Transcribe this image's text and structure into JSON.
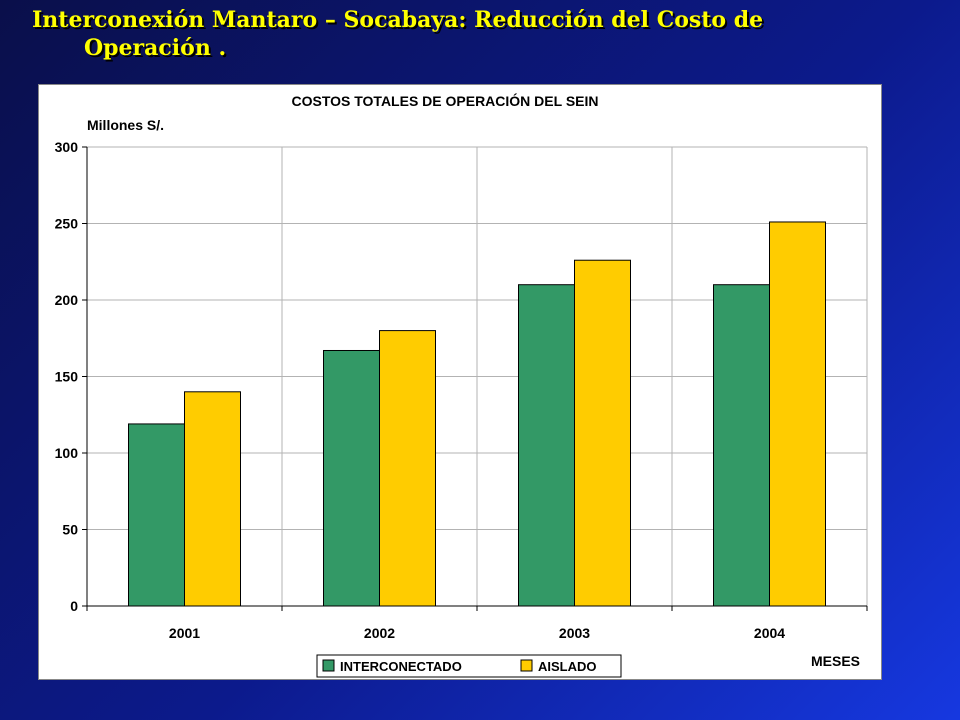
{
  "slide": {
    "title_line1": "Interconexión Mantaro – Socabaya: Reducción del Costo de",
    "title_line2": "Operación ."
  },
  "chart_data": {
    "type": "bar",
    "title": "COSTOS TOTALES DE OPERACIÓN  DEL SEIN",
    "ylabel": "Millones S/.",
    "xlabel": "MESES",
    "categories": [
      "2001",
      "2002",
      "2003",
      "2004"
    ],
    "series": [
      {
        "name": "INTERCONECTADO",
        "values": [
          119,
          167,
          210,
          210
        ],
        "color": "#339966"
      },
      {
        "name": "AISLADO",
        "values": [
          140,
          180,
          226,
          251
        ],
        "color": "#ffcc00"
      }
    ],
    "ylim": [
      0,
      300
    ],
    "yticks": [
      "0",
      "50",
      "100",
      "150",
      "200",
      "250",
      "300"
    ],
    "grid": true,
    "legend": "bottom-center"
  }
}
